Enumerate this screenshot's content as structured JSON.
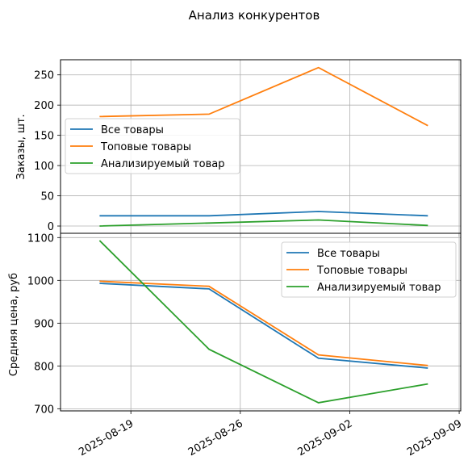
{
  "chart_data": [
    {
      "type": "line",
      "title": "Анализ конкурентов",
      "ylabel": "Заказы, шт.",
      "xlabel": "",
      "x": [
        "2025-08-17",
        "2025-08-24",
        "2025-08-31",
        "2025-09-07"
      ],
      "xticks": [
        "2025-08-19",
        "2025-08-26",
        "2025-09-02",
        "2025-09-09"
      ],
      "yticks": [
        "0",
        "50",
        "100",
        "150",
        "200",
        "250"
      ],
      "ylim": [
        -12,
        275
      ],
      "grid": true,
      "legend_position": "center-left",
      "series": [
        {
          "name": "Все товары",
          "color": "#1f77b4",
          "values": [
            17,
            17,
            24,
            17
          ]
        },
        {
          "name": "Топовые товары",
          "color": "#ff7f0e",
          "values": [
            181,
            185,
            262,
            166
          ]
        },
        {
          "name": "Анализируемый товар",
          "color": "#2ca02c",
          "values": [
            0,
            5,
            10,
            1
          ]
        }
      ]
    },
    {
      "type": "line",
      "title": "",
      "ylabel": "Средняя цена, руб",
      "xlabel": "",
      "x": [
        "2025-08-17",
        "2025-08-24",
        "2025-08-31",
        "2025-09-07"
      ],
      "xticks": [
        "2025-08-19",
        "2025-08-26",
        "2025-09-02",
        "2025-09-09"
      ],
      "yticks": [
        "700",
        "800",
        "900",
        "1000",
        "1100"
      ],
      "ylim": [
        695,
        1110
      ],
      "grid": true,
      "legend_position": "top-right",
      "series": [
        {
          "name": "Все товары",
          "color": "#1f77b4",
          "values": [
            993,
            980,
            818,
            795
          ]
        },
        {
          "name": "Топовые товары",
          "color": "#ff7f0e",
          "values": [
            998,
            986,
            826,
            801
          ]
        },
        {
          "name": "Анализируемый товар",
          "color": "#2ca02c",
          "values": [
            1093,
            839,
            714,
            758
          ]
        }
      ]
    }
  ]
}
